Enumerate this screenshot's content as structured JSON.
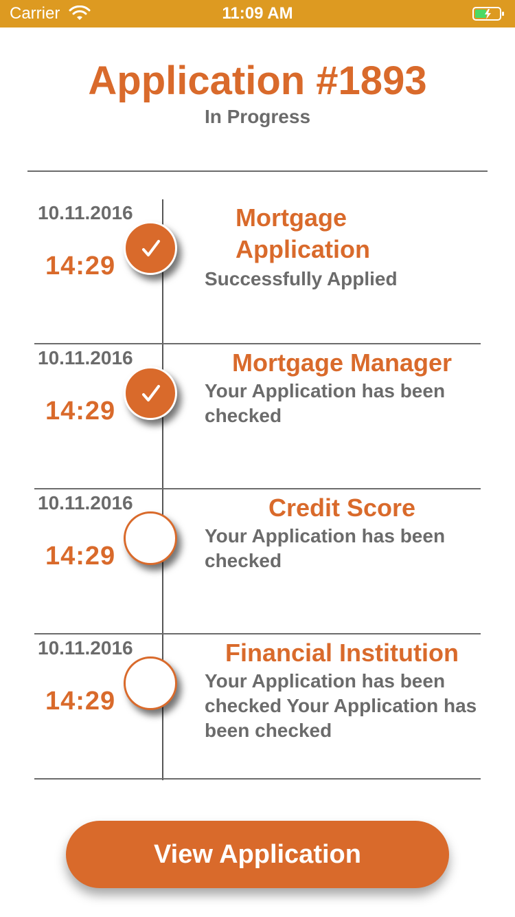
{
  "status_bar": {
    "carrier": "Carrier",
    "time": "11:09 AM",
    "color": "#dd9a21"
  },
  "header": {
    "title": "Application #1893",
    "status": "In Progress"
  },
  "colors": {
    "accent": "#d96a2b",
    "text_gray": "#6b6b6b"
  },
  "steps": [
    {
      "date": "10.11.2016",
      "time": "14:29",
      "title": "Mortgage Application",
      "description": "Successfully Applied",
      "completed": true
    },
    {
      "date": "10.11.2016",
      "time": "14:29",
      "title": "Mortgage Manager",
      "description": "Your Application has been checked",
      "completed": true
    },
    {
      "date": "10.11.2016",
      "time": "14:29",
      "title": "Credit Score",
      "description": "Your Application has been checked",
      "completed": false
    },
    {
      "date": "10.11.2016",
      "time": "14:29",
      "title": "Financial Institution",
      "description": "Your Application has been checked Your Application has been checked",
      "completed": false
    }
  ],
  "actions": {
    "view_application": "View Application"
  },
  "icons": {
    "wifi": "wifi-icon",
    "battery": "battery-charging-icon",
    "check": "checkmark-icon"
  }
}
